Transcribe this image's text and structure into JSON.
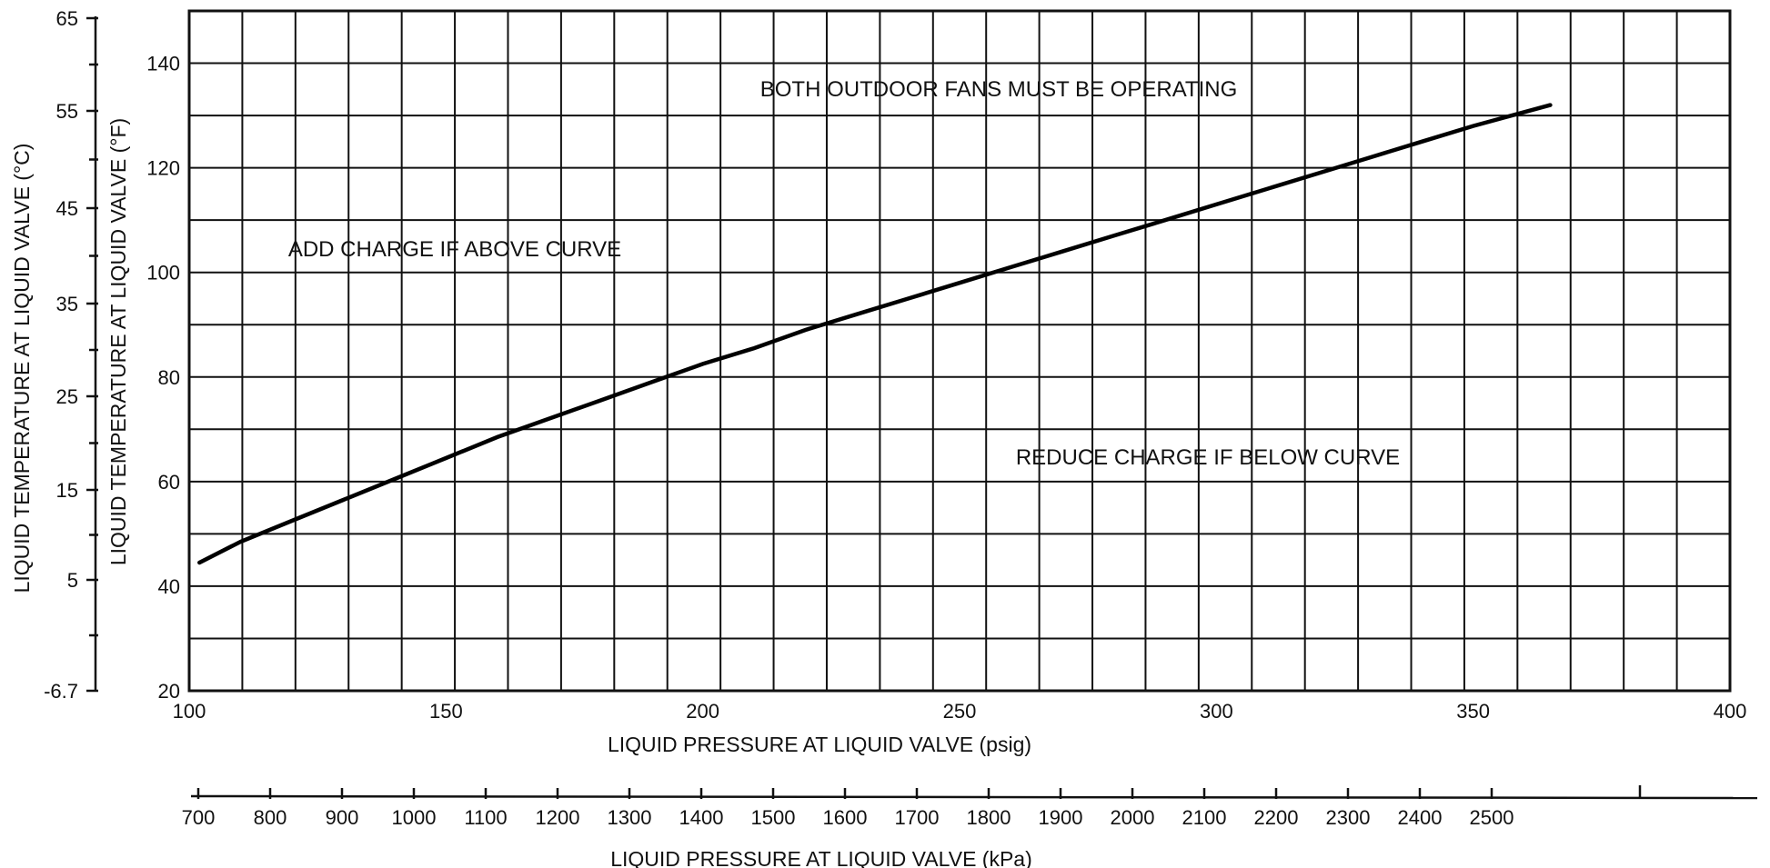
{
  "chart_data": {
    "type": "line",
    "title": "",
    "xlabel": "LIQUID PRESSURE AT LIQUID VALVE (psig)",
    "ylabel": "LIQUID TEMPERATURE AT LIQUID VALVE (°F)",
    "xlim": [
      100,
      400
    ],
    "ylim": [
      20,
      150
    ],
    "x_ticks": [
      100,
      150,
      200,
      250,
      300,
      350,
      400
    ],
    "x_tick_labels": [
      "100",
      "150",
      "200",
      "250",
      "300",
      "350",
      "400"
    ],
    "y_ticks": [
      20,
      40,
      60,
      80,
      100,
      120,
      140
    ],
    "y_tick_labels": [
      "20",
      "40",
      "60",
      "80",
      "100",
      "120",
      "140"
    ],
    "grid": true,
    "secondary_x": {
      "label": "LIQUID PRESSURE AT LIQUID VALVE (kPa)",
      "ticks": [
        700,
        800,
        900,
        1000,
        1100,
        1200,
        1300,
        1400,
        1500,
        1600,
        1700,
        1800,
        1900,
        2000,
        2100,
        2200,
        2300,
        2400,
        2500
      ],
      "tick_labels": [
        "700",
        "800",
        "900",
        "1000",
        "1100",
        "1200",
        "1300",
        "1400",
        "1500",
        "1600",
        "1700",
        "1800",
        "1900",
        "2000",
        "2100",
        "2200",
        "2300",
        "2400",
        "2500"
      ]
    },
    "secondary_y": {
      "label": "LIQUID TEMPERATURE AT LIQUID VALVE (°C)",
      "tick_labels": [
        "65",
        "55",
        "45",
        "35",
        "25",
        "15",
        "5",
        "-6.7"
      ]
    },
    "annotations": [
      "BOTH OUTDOOR FANS MUST BE OPERATING",
      "ADD CHARGE IF ABOVE CURVE",
      "REDUCE CHARGE IF BELOW CURVE"
    ],
    "series": [
      {
        "x": [
          102,
          110,
          120,
          130,
          140,
          150,
          160,
          170,
          180,
          190,
          200,
          210,
          220,
          230,
          240,
          250,
          260,
          270,
          280,
          290,
          300,
          310,
          320,
          330,
          340,
          350,
          365
        ],
        "y": [
          44.5,
          48.5,
          52.5,
          56.5,
          60.5,
          64.5,
          68.5,
          72,
          75.5,
          79,
          82.5,
          85.5,
          89,
          92,
          95,
          98,
          101,
          104,
          107,
          110,
          113,
          116,
          119,
          122,
          125,
          128,
          132
        ]
      }
    ]
  }
}
